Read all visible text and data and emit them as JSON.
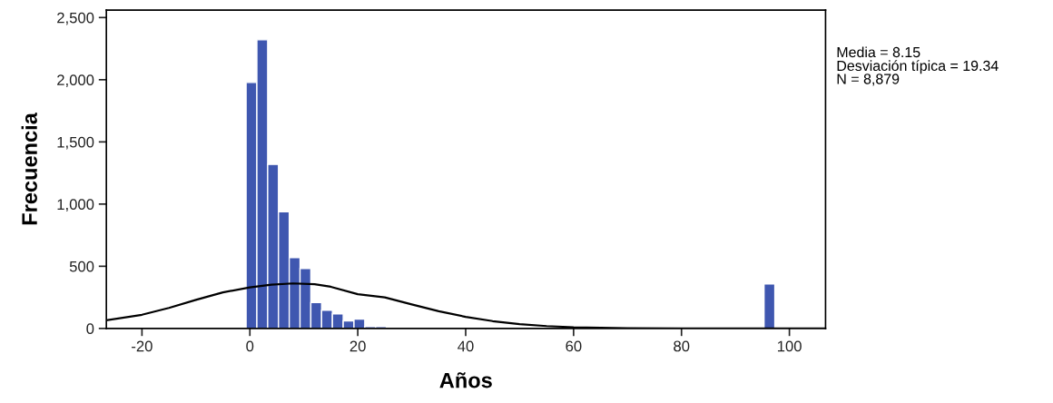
{
  "chart_data": {
    "type": "histogram",
    "xlabel": "Años",
    "ylabel": "Frecuencia",
    "annotations": [
      "Media = 8.15",
      "Desviación típica = 19.34",
      "N = 8,879"
    ],
    "series": [
      {
        "type": "histogram",
        "color": "#3f57b0",
        "bins": [
          -0.7,
          1.3,
          3.3,
          5.3,
          7.3,
          9.3,
          11.3,
          13.3,
          15.3,
          17.3,
          19.3,
          21.3,
          23.3,
          25.3,
          27.3,
          29.3,
          31.3,
          33.3,
          35.3,
          37.3,
          39.3,
          41.3,
          43.3,
          45.3,
          47.3,
          49.3,
          51.3,
          53.3,
          55.3,
          57.3,
          59.3,
          61.3,
          63.3,
          65.3,
          67.3,
          69.3,
          71.3,
          73.3,
          75.3,
          77.3,
          79.3,
          81.3,
          83.3,
          85.3,
          87.3,
          89.3,
          91.3,
          93.3,
          95.3,
          97.3
        ],
        "values": [
          1978,
          2321,
          1319,
          939,
          569,
          483,
          208,
          147,
          118,
          61,
          76,
          15,
          15,
          5,
          0,
          0,
          0,
          0,
          0,
          0,
          0,
          0,
          0,
          0,
          0,
          0,
          0,
          0,
          0,
          0,
          0,
          0,
          0,
          0,
          0,
          0,
          0,
          0,
          0,
          0,
          0,
          0,
          0,
          0,
          0,
          0,
          0,
          0,
          358
        ]
      },
      {
        "type": "line",
        "color": "#000000",
        "x": [
          -26.6,
          -20,
          -15,
          -10,
          -5,
          0,
          4,
          8,
          12,
          15,
          20,
          25,
          30,
          35,
          40,
          45,
          50,
          55,
          60,
          70,
          80,
          106.7
        ],
        "values": [
          65,
          110,
          165,
          230,
          290,
          330,
          352,
          362,
          355,
          335,
          275,
          250,
          193,
          139,
          93,
          59,
          34,
          19,
          10,
          2,
          0,
          0
        ]
      }
    ],
    "xlim": [
      -26.6,
      106.7
    ],
    "xticks": [
      -20,
      0,
      20,
      40,
      60,
      80,
      100
    ],
    "ylim": [
      0,
      2560
    ],
    "yticks": [
      0,
      500,
      {
        "value": 1000,
        "label": "1,000"
      },
      {
        "value": 1500,
        "label": "1,500"
      },
      {
        "value": 2000,
        "label": "2,000"
      },
      {
        "value": 2500,
        "label": "2,500"
      }
    ],
    "grid": false,
    "legend": false
  }
}
